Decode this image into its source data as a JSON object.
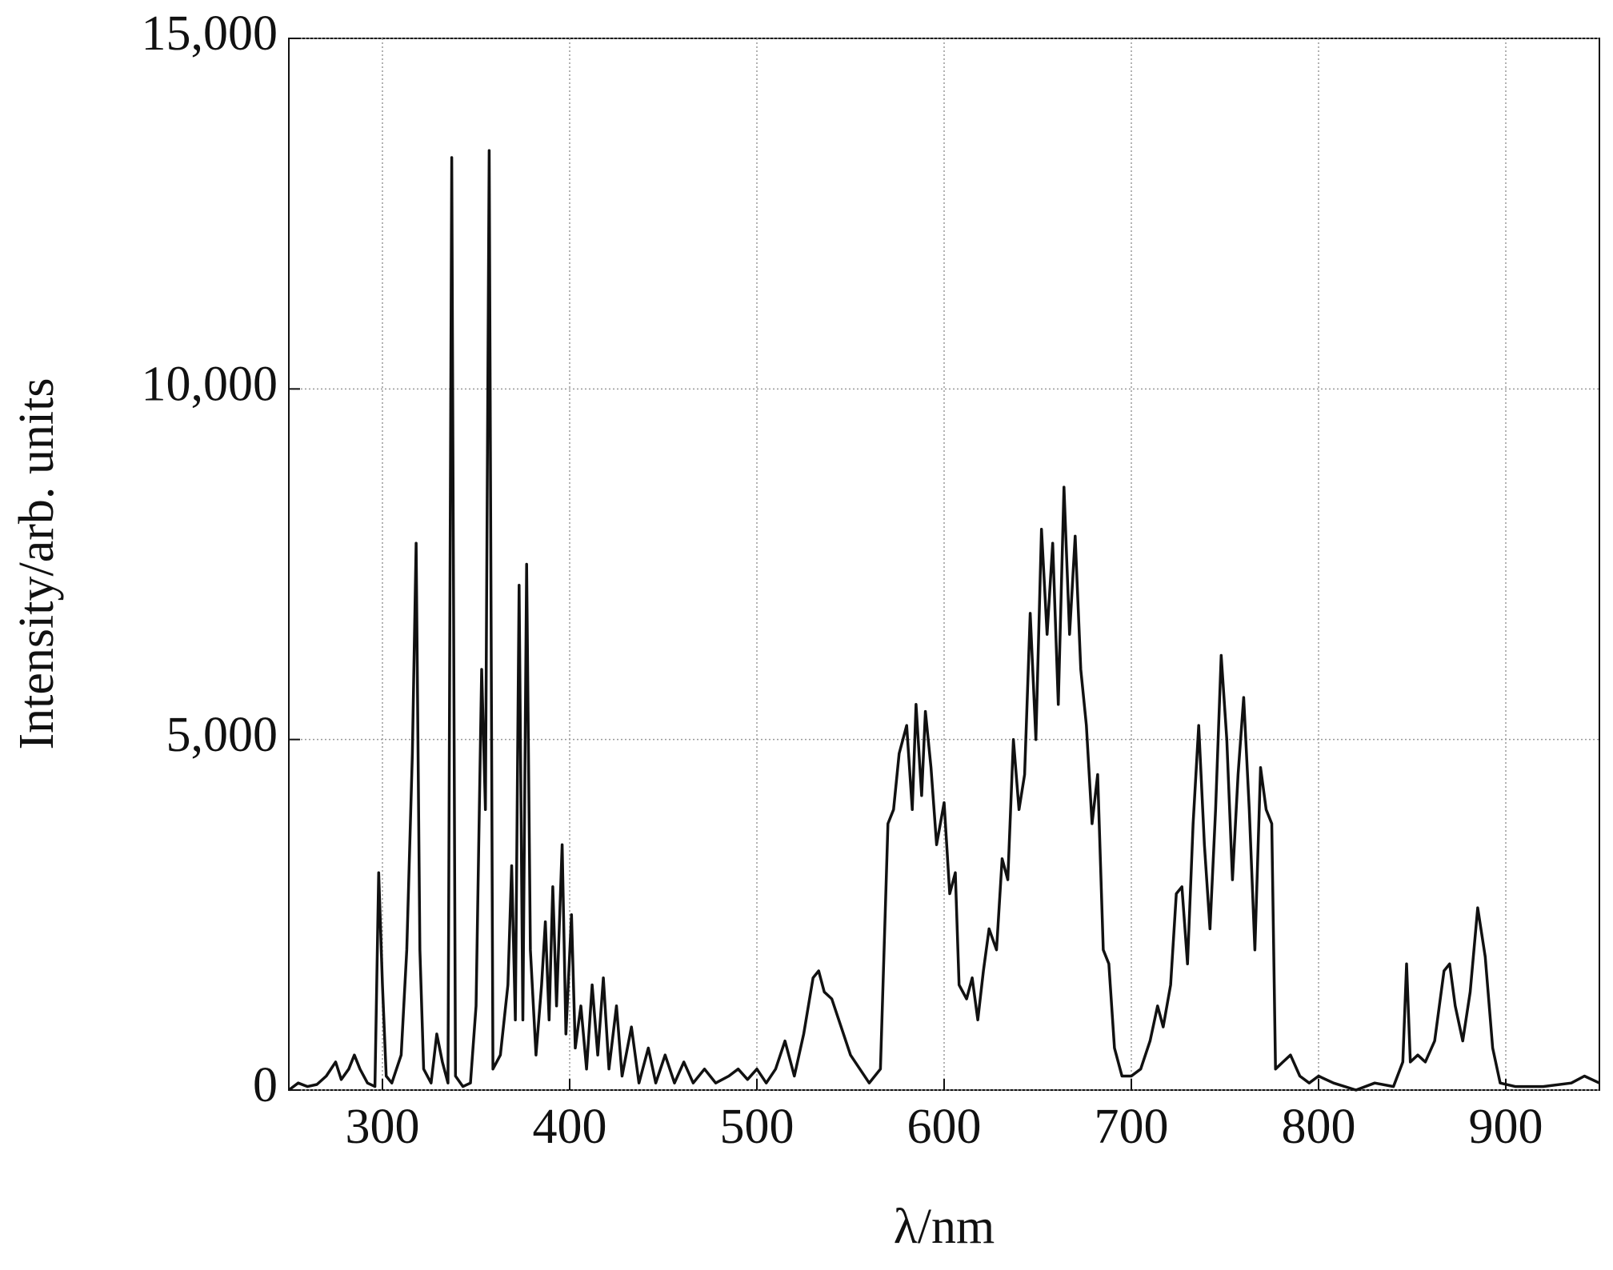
{
  "chart_data": {
    "type": "line",
    "x_label": "λ/nm",
    "y_label": "Intensity/arb. units",
    "xlim": [
      250,
      950
    ],
    "ylim": [
      0,
      15000
    ],
    "xticks": [
      300,
      400,
      500,
      600,
      700,
      800,
      900
    ],
    "yticks": [
      0,
      {
        "value": 5000,
        "label": "5,000"
      },
      {
        "value": 10000,
        "label": "10,000"
      },
      {
        "value": 15000,
        "label": "15,000"
      }
    ],
    "grid": true,
    "color": "#111111",
    "x": [
      250,
      255,
      260,
      265,
      270,
      275,
      278,
      282,
      285,
      288,
      292,
      296,
      298,
      300,
      302,
      305,
      310,
      313,
      316,
      318,
      320,
      322,
      326,
      329,
      332,
      335,
      337,
      339,
      343,
      347,
      350,
      353,
      355,
      357,
      359,
      363,
      367,
      369,
      371,
      373,
      375,
      377,
      379,
      382,
      385,
      387,
      389,
      391,
      393,
      396,
      398,
      401,
      403,
      406,
      409,
      412,
      415,
      418,
      421,
      425,
      428,
      433,
      437,
      442,
      446,
      451,
      456,
      461,
      466,
      472,
      478,
      485,
      490,
      495,
      500,
      505,
      510,
      515,
      520,
      525,
      530,
      533,
      536,
      540,
      545,
      550,
      555,
      560,
      566,
      570,
      573,
      576,
      580,
      583,
      585,
      588,
      590,
      593,
      596,
      600,
      603,
      606,
      608,
      612,
      615,
      618,
      621,
      624,
      628,
      631,
      634,
      637,
      640,
      643,
      646,
      649,
      652,
      655,
      658,
      661,
      664,
      667,
      670,
      673,
      676,
      679,
      682,
      685,
      688,
      691,
      695,
      700,
      705,
      710,
      714,
      717,
      721,
      724,
      727,
      730,
      733,
      736,
      739,
      742,
      745,
      748,
      751,
      754,
      757,
      760,
      763,
      766,
      769,
      772,
      775,
      777,
      781,
      785,
      790,
      795,
      800,
      808,
      820,
      830,
      840,
      845,
      847,
      849,
      853,
      857,
      862,
      867,
      870,
      873,
      877,
      881,
      885,
      889,
      893,
      897,
      905,
      920,
      935,
      942,
      950
    ],
    "values": [
      0,
      100,
      50,
      80,
      200,
      400,
      150,
      300,
      500,
      300,
      100,
      50,
      3100,
      1500,
      200,
      100,
      500,
      2000,
      4800,
      7800,
      2000,
      300,
      100,
      800,
      400,
      100,
      13300,
      200,
      50,
      100,
      1200,
      6000,
      4000,
      13400,
      300,
      500,
      1500,
      3200,
      1000,
      7200,
      1000,
      7500,
      2000,
      500,
      1500,
      2400,
      1000,
      2900,
      1200,
      3500,
      800,
      2500,
      600,
      1200,
      300,
      1500,
      500,
      1600,
      300,
      1200,
      200,
      900,
      100,
      600,
      100,
      500,
      100,
      400,
      100,
      300,
      100,
      200,
      300,
      150,
      300,
      100,
      300,
      700,
      200,
      800,
      1600,
      1700,
      1400,
      1300,
      900,
      500,
      300,
      100,
      300,
      3800,
      4000,
      4800,
      5200,
      4000,
      5500,
      4200,
      5400,
      4600,
      3500,
      4100,
      2800,
      3100,
      1500,
      1300,
      1600,
      1000,
      1700,
      2300,
      2000,
      3300,
      3000,
      5000,
      4000,
      4500,
      6800,
      5000,
      8000,
      6500,
      7800,
      5500,
      8600,
      6500,
      7900,
      6000,
      5200,
      3800,
      4500,
      2000,
      1800,
      600,
      200,
      200,
      300,
      700,
      1200,
      900,
      1500,
      2800,
      2900,
      1800,
      3800,
      5200,
      3500,
      2300,
      4000,
      6200,
      5000,
      3000,
      4500,
      5600,
      4000,
      2000,
      4600,
      4000,
      3800,
      300,
      400,
      500,
      200,
      100,
      200,
      100,
      0,
      100,
      50,
      400,
      1800,
      400,
      500,
      400,
      700,
      1700,
      1800,
      1200,
      700,
      1400,
      2600,
      1900,
      600,
      100,
      50,
      50,
      100,
      200,
      100
    ]
  }
}
